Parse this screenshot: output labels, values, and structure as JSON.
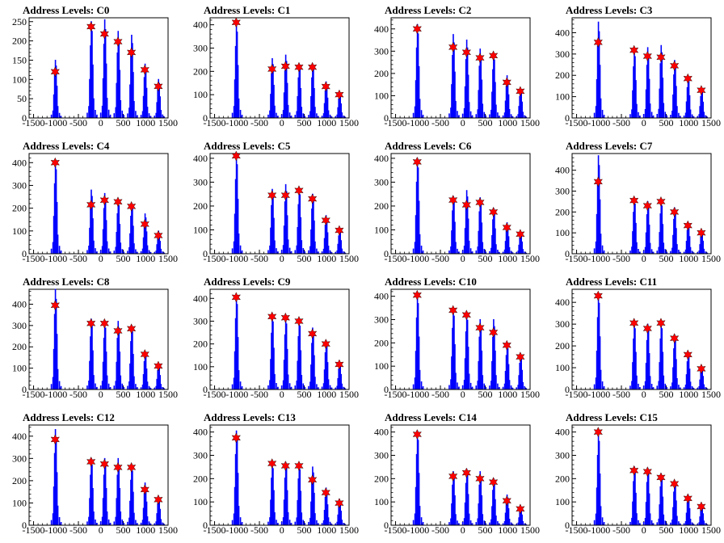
{
  "chart_data": [
    {
      "type": "bar",
      "title": "Address Levels: C0",
      "ylim": [
        0,
        260
      ],
      "yticks": [
        0,
        50,
        100,
        150,
        200,
        250
      ],
      "peaks": [
        {
          "x": -1000,
          "y": 150,
          "star": 120
        },
        {
          "x": -200,
          "y": 250,
          "star": 237
        },
        {
          "x": 100,
          "y": 255,
          "star": 218
        },
        {
          "x": 400,
          "y": 225,
          "star": 198
        },
        {
          "x": 700,
          "y": 215,
          "star": 170
        },
        {
          "x": 1000,
          "y": 140,
          "star": 125
        },
        {
          "x": 1300,
          "y": 100,
          "star": 82
        }
      ]
    },
    {
      "type": "bar",
      "title": "Address Levels: C1",
      "ylim": [
        0,
        430
      ],
      "yticks": [
        0,
        100,
        200,
        300,
        400
      ],
      "peaks": [
        {
          "x": -1000,
          "y": 410,
          "star": 410
        },
        {
          "x": -200,
          "y": 255,
          "star": 210
        },
        {
          "x": 100,
          "y": 270,
          "star": 222
        },
        {
          "x": 400,
          "y": 230,
          "star": 218
        },
        {
          "x": 700,
          "y": 230,
          "star": 218
        },
        {
          "x": 1000,
          "y": 155,
          "star": 135
        },
        {
          "x": 1300,
          "y": 110,
          "star": 100
        }
      ]
    },
    {
      "type": "bar",
      "title": "Address Levels: C2",
      "ylim": [
        0,
        450
      ],
      "yticks": [
        0,
        100,
        200,
        300,
        400
      ],
      "peaks": [
        {
          "x": -1000,
          "y": 420,
          "star": 400
        },
        {
          "x": -200,
          "y": 375,
          "star": 318
        },
        {
          "x": 100,
          "y": 350,
          "star": 295
        },
        {
          "x": 400,
          "y": 310,
          "star": 270
        },
        {
          "x": 700,
          "y": 290,
          "star": 280
        },
        {
          "x": 1000,
          "y": 190,
          "star": 160
        },
        {
          "x": 1300,
          "y": 130,
          "star": 120
        }
      ]
    },
    {
      "type": "bar",
      "title": "Address Levels: C3",
      "ylim": [
        0,
        470
      ],
      "yticks": [
        0,
        100,
        200,
        300,
        400
      ],
      "peaks": [
        {
          "x": -1000,
          "y": 450,
          "star": 355
        },
        {
          "x": -200,
          "y": 320,
          "star": 318
        },
        {
          "x": 100,
          "y": 330,
          "star": 290
        },
        {
          "x": 400,
          "y": 340,
          "star": 285
        },
        {
          "x": 700,
          "y": 270,
          "star": 245
        },
        {
          "x": 1000,
          "y": 190,
          "star": 185
        },
        {
          "x": 1300,
          "y": 135,
          "star": 130
        }
      ]
    },
    {
      "type": "bar",
      "title": "Address Levels: C4",
      "ylim": [
        0,
        440
      ],
      "yticks": [
        0,
        100,
        200,
        300,
        400
      ],
      "peaks": [
        {
          "x": -1000,
          "y": 410,
          "star": 400
        },
        {
          "x": -200,
          "y": 280,
          "star": 215
        },
        {
          "x": 100,
          "y": 265,
          "star": 235
        },
        {
          "x": 400,
          "y": 235,
          "star": 228
        },
        {
          "x": 700,
          "y": 220,
          "star": 208
        },
        {
          "x": 1000,
          "y": 175,
          "star": 130
        },
        {
          "x": 1300,
          "y": 100,
          "star": 80
        }
      ]
    },
    {
      "type": "bar",
      "title": "Address Levels: C5",
      "ylim": [
        0,
        420
      ],
      "yticks": [
        0,
        100,
        200,
        300,
        400
      ],
      "peaks": [
        {
          "x": -1000,
          "y": 415,
          "star": 410
        },
        {
          "x": -200,
          "y": 270,
          "star": 245
        },
        {
          "x": 100,
          "y": 290,
          "star": 245
        },
        {
          "x": 400,
          "y": 275,
          "star": 265
        },
        {
          "x": 700,
          "y": 250,
          "star": 230
        },
        {
          "x": 1000,
          "y": 160,
          "star": 140
        },
        {
          "x": 1300,
          "y": 100,
          "star": 98
        }
      ]
    },
    {
      "type": "bar",
      "title": "Address Levels: C6",
      "ylim": [
        0,
        420
      ],
      "yticks": [
        0,
        100,
        200,
        300,
        400
      ],
      "peaks": [
        {
          "x": -1000,
          "y": 400,
          "star": 385
        },
        {
          "x": -200,
          "y": 240,
          "star": 225
        },
        {
          "x": 100,
          "y": 265,
          "star": 205
        },
        {
          "x": 400,
          "y": 235,
          "star": 215
        },
        {
          "x": 700,
          "y": 190,
          "star": 175
        },
        {
          "x": 1000,
          "y": 130,
          "star": 110
        },
        {
          "x": 1300,
          "y": 90,
          "star": 82
        }
      ]
    },
    {
      "type": "bar",
      "title": "Address Levels: C7",
      "ylim": [
        0,
        480
      ],
      "yticks": [
        0,
        100,
        200,
        300,
        400
      ],
      "peaks": [
        {
          "x": -1000,
          "y": 470,
          "star": 345
        },
        {
          "x": -200,
          "y": 265,
          "star": 255
        },
        {
          "x": 100,
          "y": 250,
          "star": 230
        },
        {
          "x": 400,
          "y": 255,
          "star": 250
        },
        {
          "x": 700,
          "y": 220,
          "star": 200
        },
        {
          "x": 1000,
          "y": 150,
          "star": 135
        },
        {
          "x": 1300,
          "y": 110,
          "star": 100
        }
      ]
    },
    {
      "type": "bar",
      "title": "Address Levels: C8",
      "ylim": [
        0,
        470
      ],
      "yticks": [
        0,
        100,
        200,
        300,
        400
      ],
      "peaks": [
        {
          "x": -1000,
          "y": 470,
          "star": 395
        },
        {
          "x": -200,
          "y": 330,
          "star": 310
        },
        {
          "x": 100,
          "y": 320,
          "star": 310
        },
        {
          "x": 400,
          "y": 320,
          "star": 275
        },
        {
          "x": 700,
          "y": 300,
          "star": 285
        },
        {
          "x": 1000,
          "y": 175,
          "star": 165
        },
        {
          "x": 1300,
          "y": 120,
          "star": 110
        }
      ]
    },
    {
      "type": "bar",
      "title": "Address Levels: C9",
      "ylim": [
        0,
        440
      ],
      "yticks": [
        0,
        100,
        200,
        300,
        400
      ],
      "peaks": [
        {
          "x": -1000,
          "y": 415,
          "star": 405
        },
        {
          "x": -200,
          "y": 330,
          "star": 320
        },
        {
          "x": 100,
          "y": 320,
          "star": 315
        },
        {
          "x": 400,
          "y": 310,
          "star": 300
        },
        {
          "x": 700,
          "y": 270,
          "star": 245
        },
        {
          "x": 1000,
          "y": 215,
          "star": 200
        },
        {
          "x": 1300,
          "y": 120,
          "star": 110
        }
      ]
    },
    {
      "type": "bar",
      "title": "Address Levels: C10",
      "ylim": [
        0,
        430
      ],
      "yticks": [
        0,
        100,
        200,
        300,
        400
      ],
      "peaks": [
        {
          "x": -1000,
          "y": 410,
          "star": 405
        },
        {
          "x": -200,
          "y": 350,
          "star": 340
        },
        {
          "x": 100,
          "y": 330,
          "star": 320
        },
        {
          "x": 400,
          "y": 300,
          "star": 265
        },
        {
          "x": 700,
          "y": 300,
          "star": 245
        },
        {
          "x": 1000,
          "y": 195,
          "star": 190
        },
        {
          "x": 1300,
          "y": 150,
          "star": 140
        }
      ]
    },
    {
      "type": "bar",
      "title": "Address Levels: C11",
      "ylim": [
        0,
        460
      ],
      "yticks": [
        0,
        100,
        200,
        300,
        400
      ],
      "peaks": [
        {
          "x": -1000,
          "y": 440,
          "star": 430
        },
        {
          "x": -200,
          "y": 310,
          "star": 305
        },
        {
          "x": 100,
          "y": 300,
          "star": 280
        },
        {
          "x": 400,
          "y": 310,
          "star": 305
        },
        {
          "x": 700,
          "y": 250,
          "star": 235
        },
        {
          "x": 1000,
          "y": 170,
          "star": 160
        },
        {
          "x": 1300,
          "y": 110,
          "star": 95
        }
      ]
    },
    {
      "type": "bar",
      "title": "Address Levels: C12",
      "ylim": [
        0,
        450
      ],
      "yticks": [
        0,
        100,
        200,
        300,
        400
      ],
      "peaks": [
        {
          "x": -1000,
          "y": 430,
          "star": 385
        },
        {
          "x": -200,
          "y": 300,
          "star": 285
        },
        {
          "x": 100,
          "y": 300,
          "star": 275
        },
        {
          "x": 400,
          "y": 300,
          "star": 260
        },
        {
          "x": 700,
          "y": 270,
          "star": 260
        },
        {
          "x": 1000,
          "y": 190,
          "star": 160
        },
        {
          "x": 1300,
          "y": 130,
          "star": 115
        }
      ]
    },
    {
      "type": "bar",
      "title": "Address Levels: C13",
      "ylim": [
        0,
        430
      ],
      "yticks": [
        0,
        100,
        200,
        300,
        400
      ],
      "peaks": [
        {
          "x": -1000,
          "y": 405,
          "star": 375
        },
        {
          "x": -200,
          "y": 270,
          "star": 265
        },
        {
          "x": 100,
          "y": 270,
          "star": 255
        },
        {
          "x": 400,
          "y": 265,
          "star": 255
        },
        {
          "x": 700,
          "y": 250,
          "star": 195
        },
        {
          "x": 1000,
          "y": 160,
          "star": 140
        },
        {
          "x": 1300,
          "y": 110,
          "star": 95
        }
      ]
    },
    {
      "type": "bar",
      "title": "Address Levels: C14",
      "ylim": [
        0,
        430
      ],
      "yticks": [
        0,
        100,
        200,
        300,
        400
      ],
      "peaks": [
        {
          "x": -1000,
          "y": 405,
          "star": 390
        },
        {
          "x": -200,
          "y": 230,
          "star": 210
        },
        {
          "x": 100,
          "y": 240,
          "star": 225
        },
        {
          "x": 400,
          "y": 230,
          "star": 200
        },
        {
          "x": 700,
          "y": 200,
          "star": 185
        },
        {
          "x": 1000,
          "y": 130,
          "star": 105
        },
        {
          "x": 1300,
          "y": 80,
          "star": 70
        }
      ]
    },
    {
      "type": "bar",
      "title": "Address Levels: C15",
      "ylim": [
        0,
        430
      ],
      "yticks": [
        0,
        100,
        200,
        300,
        400
      ],
      "peaks": [
        {
          "x": -1000,
          "y": 400,
          "star": 400
        },
        {
          "x": -200,
          "y": 250,
          "star": 235
        },
        {
          "x": 100,
          "y": 245,
          "star": 230
        },
        {
          "x": 400,
          "y": 220,
          "star": 205
        },
        {
          "x": 700,
          "y": 190,
          "star": 178
        },
        {
          "x": 1000,
          "y": 130,
          "star": 115
        },
        {
          "x": 1300,
          "y": 90,
          "star": 80
        }
      ]
    }
  ],
  "x_axis": {
    "xlim": [
      -1600,
      1500
    ],
    "tick_labels": [
      "-1500",
      "-1000",
      "-500",
      "0",
      "500",
      "1000",
      "1500"
    ],
    "tick_values": [
      -1500,
      -1000,
      -500,
      0,
      500,
      1000,
      1500
    ]
  },
  "colors": {
    "histogram": "#0000ff",
    "marker": "#ff0000",
    "axis": "#000000"
  }
}
